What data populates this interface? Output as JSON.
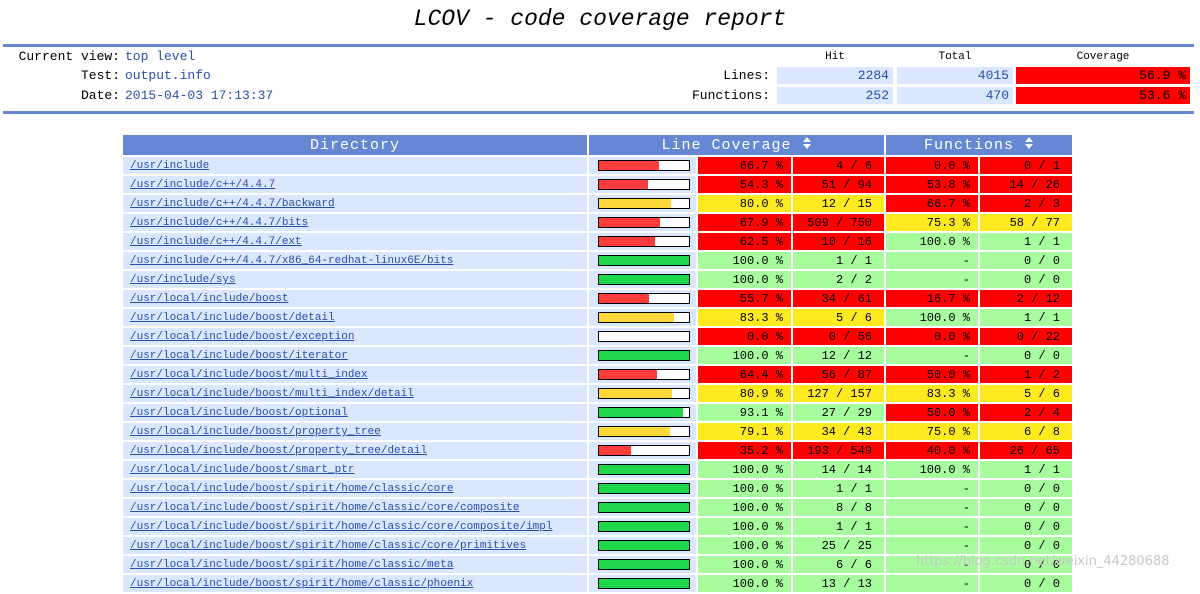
{
  "header": {
    "title": "LCOV - code coverage report",
    "current_view_label": "Current view:",
    "current_view": "top level",
    "test_label": "Test:",
    "test": "output.info",
    "date_label": "Date:",
    "date": "2015-04-03 17:13:37",
    "col_hit": "Hit",
    "col_total": "Total",
    "col_coverage": "Coverage",
    "lines_label": "Lines:",
    "lines_hit": 2284,
    "lines_total": 4015,
    "lines_coverage": 56.9,
    "lines_coverage_label": "56.9 %",
    "functions_label": "Functions:",
    "functions_hit": 252,
    "functions_total": 470,
    "functions_coverage": 53.6,
    "functions_coverage_label": "53.6 %"
  },
  "colors": {
    "lo": "#ff0000",
    "med": "#ffea20",
    "hi": "#a7fc9d",
    "bar_lo": "#ff3b3b",
    "bar_med": "#ffd83a",
    "bar_hi": "#1ed74a"
  },
  "table": {
    "columns": [
      "Directory",
      "Line Coverage",
      "Functions"
    ],
    "rows": [
      {
        "dir": "/usr/include",
        "line_pct": 66.7,
        "line_pct_label": "66.7 %",
        "line_count": "4 / 6",
        "func_pct": 0.0,
        "func_pct_label": "0.0 %",
        "func_count": "0 / 1"
      },
      {
        "dir": "/usr/include/c++/4.4.7",
        "line_pct": 54.3,
        "line_pct_label": "54.3 %",
        "line_count": "51 / 94",
        "func_pct": 53.8,
        "func_pct_label": "53.8 %",
        "func_count": "14 / 26"
      },
      {
        "dir": "/usr/include/c++/4.4.7/backward",
        "line_pct": 80.0,
        "line_pct_label": "80.0 %",
        "line_count": "12 / 15",
        "func_pct": 66.7,
        "func_pct_label": "66.7 %",
        "func_count": "2 / 3"
      },
      {
        "dir": "/usr/include/c++/4.4.7/bits",
        "line_pct": 67.9,
        "line_pct_label": "67.9 %",
        "line_count": "509 / 750",
        "func_pct": 75.3,
        "func_pct_label": "75.3 %",
        "func_count": "58 / 77"
      },
      {
        "dir": "/usr/include/c++/4.4.7/ext",
        "line_pct": 62.5,
        "line_pct_label": "62.5 %",
        "line_count": "10 / 16",
        "func_pct": 100.0,
        "func_pct_label": "100.0 %",
        "func_count": "1 / 1"
      },
      {
        "dir": "/usr/include/c++/4.4.7/x86_64-redhat-linux6E/bits",
        "line_pct": 100.0,
        "line_pct_label": "100.0 %",
        "line_count": "1 / 1",
        "func_pct": null,
        "func_pct_label": "-",
        "func_count": "0 / 0"
      },
      {
        "dir": "/usr/include/sys",
        "line_pct": 100.0,
        "line_pct_label": "100.0 %",
        "line_count": "2 / 2",
        "func_pct": null,
        "func_pct_label": "-",
        "func_count": "0 / 0"
      },
      {
        "dir": "/usr/local/include/boost",
        "line_pct": 55.7,
        "line_pct_label": "55.7 %",
        "line_count": "34 / 61",
        "func_pct": 16.7,
        "func_pct_label": "16.7 %",
        "func_count": "2 / 12"
      },
      {
        "dir": "/usr/local/include/boost/detail",
        "line_pct": 83.3,
        "line_pct_label": "83.3 %",
        "line_count": "5 / 6",
        "func_pct": 100.0,
        "func_pct_label": "100.0 %",
        "func_count": "1 / 1"
      },
      {
        "dir": "/usr/local/include/boost/exception",
        "line_pct": 0.0,
        "line_pct_label": "0.0 %",
        "line_count": "0 / 56",
        "func_pct": 0.0,
        "func_pct_label": "0.0 %",
        "func_count": "0 / 22"
      },
      {
        "dir": "/usr/local/include/boost/iterator",
        "line_pct": 100.0,
        "line_pct_label": "100.0 %",
        "line_count": "12 / 12",
        "func_pct": null,
        "func_pct_label": "-",
        "func_count": "0 / 0"
      },
      {
        "dir": "/usr/local/include/boost/multi_index",
        "line_pct": 64.4,
        "line_pct_label": "64.4 %",
        "line_count": "56 / 87",
        "func_pct": 50.0,
        "func_pct_label": "50.0 %",
        "func_count": "1 / 2"
      },
      {
        "dir": "/usr/local/include/boost/multi_index/detail",
        "line_pct": 80.9,
        "line_pct_label": "80.9 %",
        "line_count": "127 / 157",
        "func_pct": 83.3,
        "func_pct_label": "83.3 %",
        "func_count": "5 / 6"
      },
      {
        "dir": "/usr/local/include/boost/optional",
        "line_pct": 93.1,
        "line_pct_label": "93.1 %",
        "line_count": "27 / 29",
        "func_pct": 50.0,
        "func_pct_label": "50.0 %",
        "func_count": "2 / 4"
      },
      {
        "dir": "/usr/local/include/boost/property_tree",
        "line_pct": 79.1,
        "line_pct_label": "79.1 %",
        "line_count": "34 / 43",
        "func_pct": 75.0,
        "func_pct_label": "75.0 %",
        "func_count": "6 / 8"
      },
      {
        "dir": "/usr/local/include/boost/property_tree/detail",
        "line_pct": 35.2,
        "line_pct_label": "35.2 %",
        "line_count": "193 / 549",
        "func_pct": 40.0,
        "func_pct_label": "40.0 %",
        "func_count": "26 / 65"
      },
      {
        "dir": "/usr/local/include/boost/smart_ptr",
        "line_pct": 100.0,
        "line_pct_label": "100.0 %",
        "line_count": "14 / 14",
        "func_pct": 100.0,
        "func_pct_label": "100.0 %",
        "func_count": "1 / 1"
      },
      {
        "dir": "/usr/local/include/boost/spirit/home/classic/core",
        "line_pct": 100.0,
        "line_pct_label": "100.0 %",
        "line_count": "1 / 1",
        "func_pct": null,
        "func_pct_label": "-",
        "func_count": "0 / 0"
      },
      {
        "dir": "/usr/local/include/boost/spirit/home/classic/core/composite",
        "line_pct": 100.0,
        "line_pct_label": "100.0 %",
        "line_count": "8 / 8",
        "func_pct": null,
        "func_pct_label": "-",
        "func_count": "0 / 0"
      },
      {
        "dir": "/usr/local/include/boost/spirit/home/classic/core/composite/impl",
        "line_pct": 100.0,
        "line_pct_label": "100.0 %",
        "line_count": "1 / 1",
        "func_pct": null,
        "func_pct_label": "-",
        "func_count": "0 / 0"
      },
      {
        "dir": "/usr/local/include/boost/spirit/home/classic/core/primitives",
        "line_pct": 100.0,
        "line_pct_label": "100.0 %",
        "line_count": "25 / 25",
        "func_pct": null,
        "func_pct_label": "-",
        "func_count": "0 / 0"
      },
      {
        "dir": "/usr/local/include/boost/spirit/home/classic/meta",
        "line_pct": 100.0,
        "line_pct_label": "100.0 %",
        "line_count": "6 / 6",
        "func_pct": null,
        "func_pct_label": "-",
        "func_count": "0 / 0"
      },
      {
        "dir": "/usr/local/include/boost/spirit/home/classic/phoenix",
        "line_pct": 100.0,
        "line_pct_label": "100.0 %",
        "line_count": "13 / 13",
        "func_pct": null,
        "func_pct_label": "-",
        "func_count": "0 / 0"
      }
    ]
  },
  "watermark": "https://blog.csdn.net/weixin_44280688"
}
